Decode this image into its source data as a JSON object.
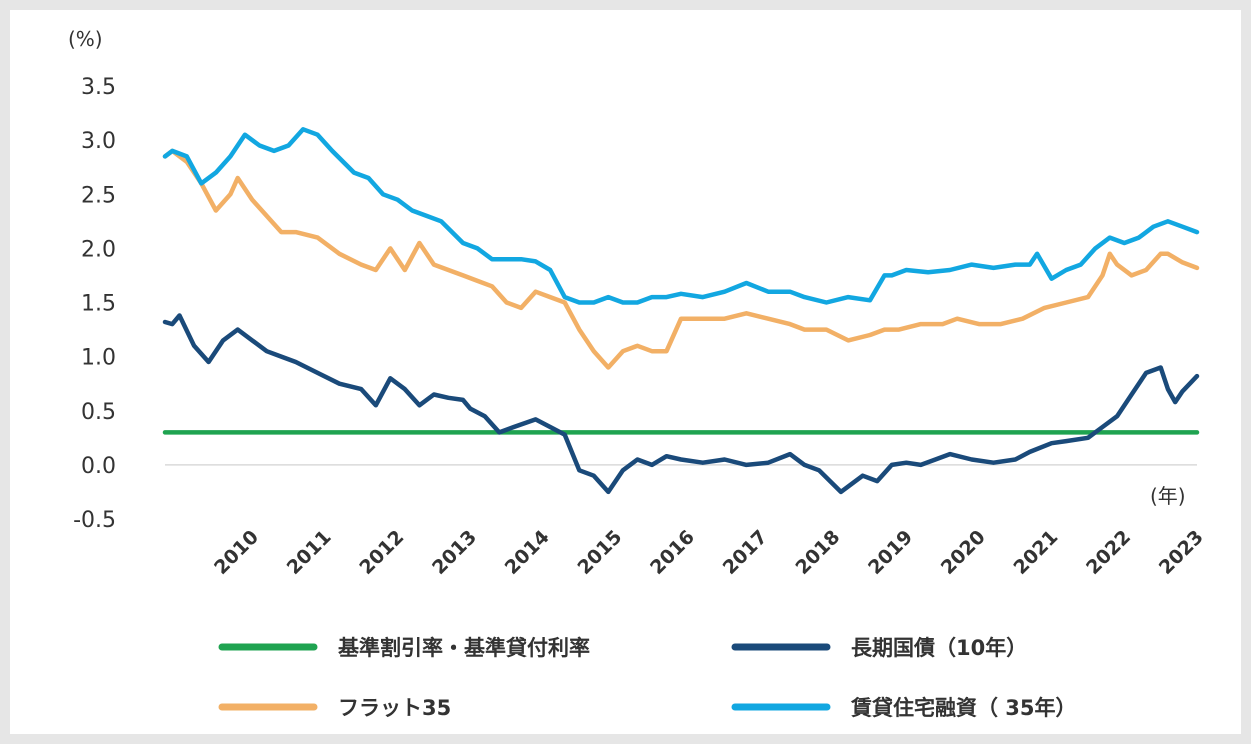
{
  "chart_data": {
    "type": "line",
    "ylabel_unit": "(%)",
    "xlabel_unit": "(年)",
    "ylim": [
      -0.5,
      3.5
    ],
    "yticks": [
      "3.5",
      "3.0",
      "2.5",
      "2.0",
      "1.5",
      "1.0",
      "0.5",
      "0.0",
      "-0.5"
    ],
    "xticks": [
      "2010",
      "2011",
      "2012",
      "2013",
      "2014",
      "2015",
      "2016",
      "2017",
      "2018",
      "2019",
      "2020",
      "2021",
      "2022",
      "2023"
    ],
    "x_range": [
      2009.2,
      2023.4
    ],
    "legend_position": "bottom",
    "colors": {
      "negative_tick": "#c00000",
      "baseline": "#d9d9d9"
    },
    "series": [
      {
        "name": "基準割引率・基準貸付利率",
        "color": "#1fa350",
        "x": [
          2009.2,
          2023.4
        ],
        "values": [
          0.3,
          0.3
        ]
      },
      {
        "name": "長期国債（10年）",
        "color": "#1a4a7a",
        "x": [
          2009.2,
          2009.3,
          2009.4,
          2009.6,
          2009.8,
          2010.0,
          2010.2,
          2010.4,
          2010.6,
          2010.8,
          2011.0,
          2011.3,
          2011.6,
          2011.9,
          2012.1,
          2012.3,
          2012.5,
          2012.7,
          2012.9,
          2013.1,
          2013.3,
          2013.4,
          2013.6,
          2013.8,
          2014.0,
          2014.3,
          2014.5,
          2014.7,
          2014.9,
          2015.1,
          2015.3,
          2015.5,
          2015.7,
          2015.9,
          2016.1,
          2016.3,
          2016.6,
          2016.9,
          2017.2,
          2017.5,
          2017.8,
          2018.0,
          2018.2,
          2018.5,
          2018.8,
          2019.0,
          2019.2,
          2019.4,
          2019.6,
          2019.8,
          2020.0,
          2020.3,
          2020.6,
          2020.9,
          2021.1,
          2021.4,
          2021.6,
          2021.9,
          2022.1,
          2022.3,
          2022.5,
          2022.7,
          2022.9,
          2023.0,
          2023.1,
          2023.2,
          2023.4
        ],
        "values": [
          1.32,
          1.3,
          1.38,
          1.1,
          0.95,
          1.15,
          1.25,
          1.15,
          1.05,
          1.0,
          0.95,
          0.85,
          0.75,
          0.7,
          0.55,
          0.8,
          0.7,
          0.55,
          0.65,
          0.62,
          0.6,
          0.52,
          0.45,
          0.3,
          0.35,
          0.42,
          0.35,
          0.28,
          -0.05,
          -0.1,
          -0.25,
          -0.05,
          0.05,
          0.0,
          0.08,
          0.05,
          0.02,
          0.05,
          0.0,
          0.02,
          0.1,
          0.0,
          -0.05,
          -0.25,
          -0.1,
          -0.15,
          0.0,
          0.02,
          0.0,
          0.05,
          0.1,
          0.05,
          0.02,
          0.05,
          0.12,
          0.2,
          0.22,
          0.25,
          0.35,
          0.45,
          0.65,
          0.85,
          0.9,
          0.7,
          0.58,
          0.68,
          0.82
        ]
      },
      {
        "name": "フラット35",
        "color": "#f2b066",
        "x": [
          2009.2,
          2009.3,
          2009.5,
          2009.7,
          2009.9,
          2010.1,
          2010.2,
          2010.4,
          2010.6,
          2010.8,
          2011.0,
          2011.3,
          2011.6,
          2011.9,
          2012.1,
          2012.3,
          2012.5,
          2012.7,
          2012.9,
          2013.1,
          2013.3,
          2013.5,
          2013.7,
          2013.9,
          2014.1,
          2014.3,
          2014.5,
          2014.7,
          2014.9,
          2015.1,
          2015.3,
          2015.5,
          2015.7,
          2015.9,
          2016.1,
          2016.3,
          2016.6,
          2016.9,
          2017.2,
          2017.5,
          2017.8,
          2018.0,
          2018.3,
          2018.6,
          2018.9,
          2019.1,
          2019.3,
          2019.6,
          2019.9,
          2020.1,
          2020.4,
          2020.7,
          2021.0,
          2021.3,
          2021.6,
          2021.9,
          2022.1,
          2022.2,
          2022.3,
          2022.5,
          2022.7,
          2022.9,
          2023.0,
          2023.2,
          2023.4
        ],
        "values": [
          2.85,
          2.9,
          2.8,
          2.6,
          2.35,
          2.5,
          2.65,
          2.45,
          2.3,
          2.15,
          2.15,
          2.1,
          1.95,
          1.85,
          1.8,
          2.0,
          1.8,
          2.05,
          1.85,
          1.8,
          1.75,
          1.7,
          1.65,
          1.5,
          1.45,
          1.6,
          1.55,
          1.5,
          1.25,
          1.05,
          0.9,
          1.05,
          1.1,
          1.05,
          1.05,
          1.35,
          1.35,
          1.35,
          1.4,
          1.35,
          1.3,
          1.25,
          1.25,
          1.15,
          1.2,
          1.25,
          1.25,
          1.3,
          1.3,
          1.35,
          1.3,
          1.3,
          1.35,
          1.45,
          1.5,
          1.55,
          1.75,
          1.95,
          1.85,
          1.75,
          1.8,
          1.95,
          1.95,
          1.87,
          1.82
        ]
      },
      {
        "name": "賃貸住宅融資（ 35年）",
        "color": "#12a7e1",
        "x": [
          2009.2,
          2009.3,
          2009.5,
          2009.7,
          2009.9,
          2010.1,
          2010.3,
          2010.5,
          2010.7,
          2010.9,
          2011.1,
          2011.3,
          2011.5,
          2011.8,
          2012.0,
          2012.2,
          2012.4,
          2012.6,
          2012.8,
          2013.0,
          2013.3,
          2013.5,
          2013.7,
          2013.9,
          2014.1,
          2014.3,
          2014.5,
          2014.7,
          2014.9,
          2015.1,
          2015.3,
          2015.5,
          2015.7,
          2015.9,
          2016.1,
          2016.3,
          2016.6,
          2016.9,
          2017.2,
          2017.5,
          2017.8,
          2018.0,
          2018.3,
          2018.6,
          2018.9,
          2019.1,
          2019.2,
          2019.4,
          2019.7,
          2020.0,
          2020.3,
          2020.6,
          2020.9,
          2021.1,
          2021.2,
          2021.4,
          2021.6,
          2021.8,
          2022.0,
          2022.2,
          2022.4,
          2022.6,
          2022.8,
          2023.0,
          2023.2,
          2023.4
        ],
        "values": [
          2.85,
          2.9,
          2.85,
          2.6,
          2.7,
          2.85,
          3.05,
          2.95,
          2.9,
          2.95,
          3.1,
          3.05,
          2.9,
          2.7,
          2.65,
          2.5,
          2.45,
          2.35,
          2.3,
          2.25,
          2.05,
          2.0,
          1.9,
          1.9,
          1.9,
          1.88,
          1.8,
          1.55,
          1.5,
          1.5,
          1.55,
          1.5,
          1.5,
          1.55,
          1.55,
          1.58,
          1.55,
          1.6,
          1.68,
          1.6,
          1.6,
          1.55,
          1.5,
          1.55,
          1.52,
          1.75,
          1.75,
          1.8,
          1.78,
          1.8,
          1.85,
          1.82,
          1.85,
          1.85,
          1.95,
          1.72,
          1.8,
          1.85,
          2.0,
          2.1,
          2.05,
          2.1,
          2.2,
          2.25,
          2.2,
          2.15
        ]
      }
    ]
  }
}
